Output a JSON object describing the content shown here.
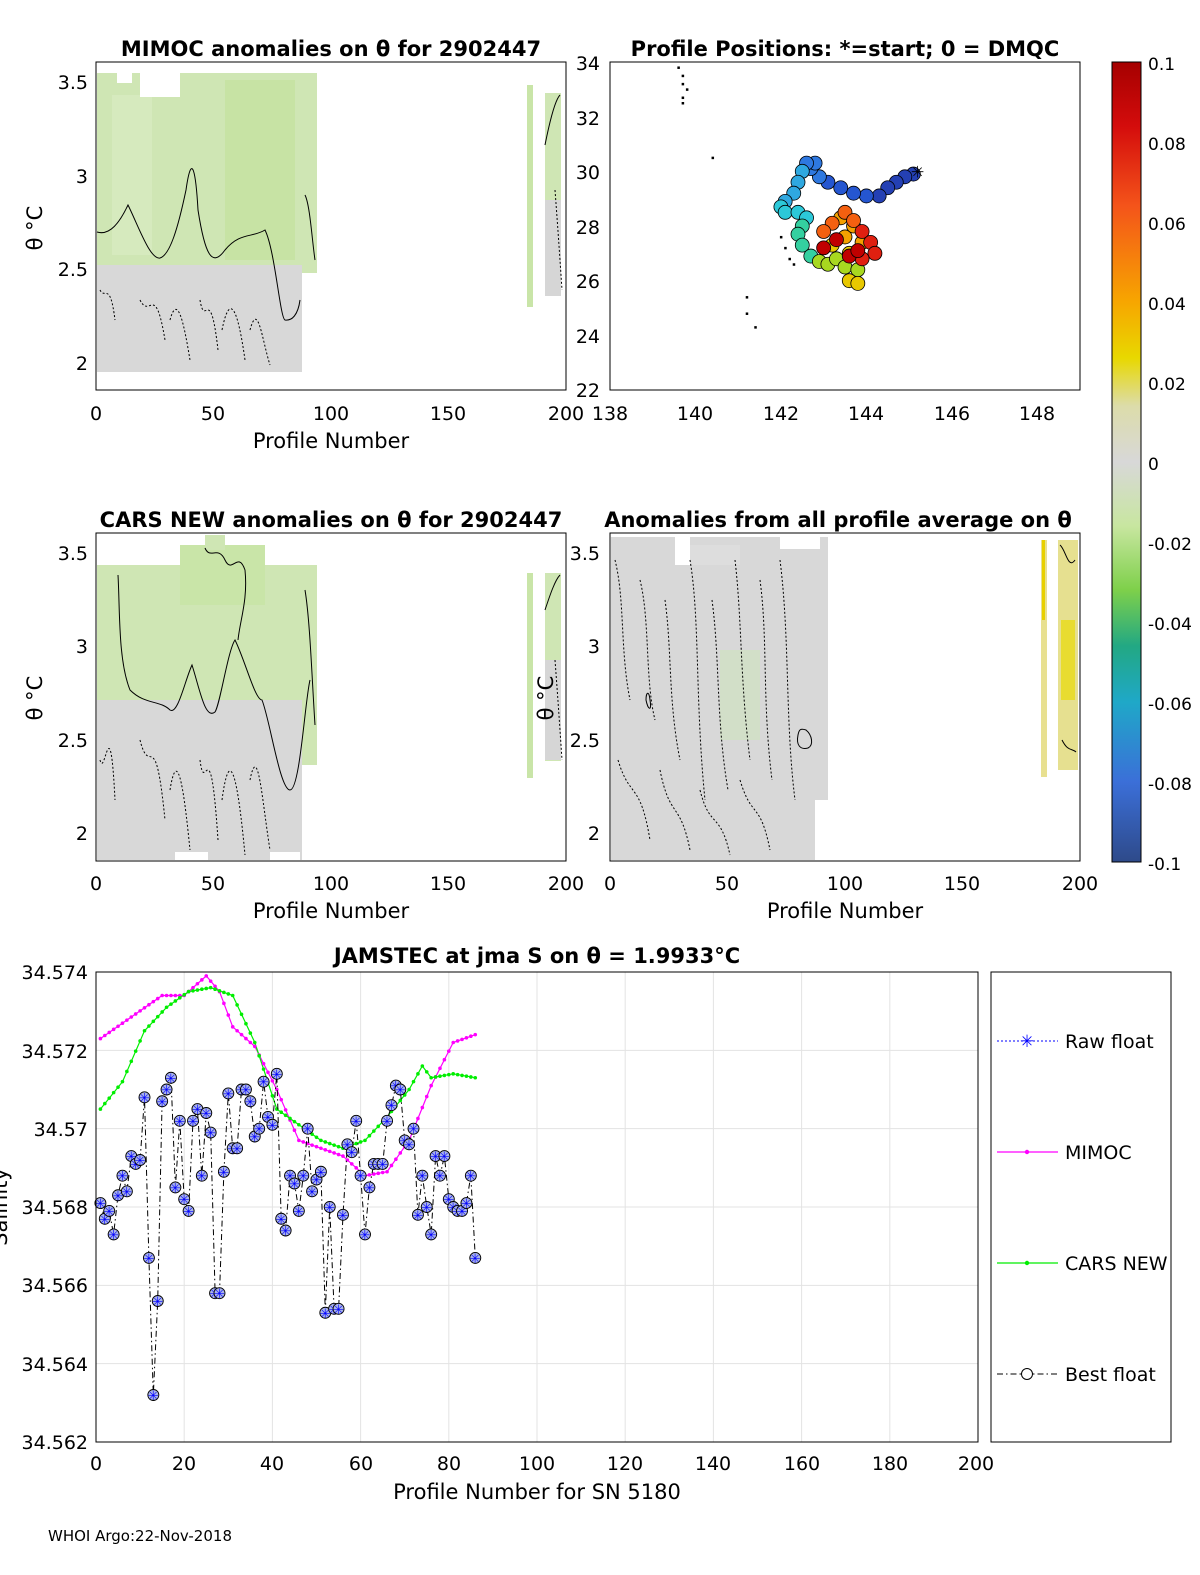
{
  "footer": "WHOI Argo:22-Nov-2018",
  "chart_data": [
    {
      "id": "mimoc",
      "type": "heatmap",
      "title": "MIMOC anomalies on θ  for 2902447",
      "xlabel": "Profile Number",
      "ylabel": "θ °C",
      "xlim": [
        0,
        200
      ],
      "ylim": [
        1.85,
        3.6
      ],
      "xticks": [
        "0",
        "50",
        "100",
        "150",
        "200"
      ],
      "yticks": [
        "2",
        "2.5",
        "3",
        "3.5"
      ],
      "xtick_values": [
        0,
        50,
        100,
        150,
        200
      ],
      "ytick_values": [
        2,
        2.5,
        3,
        3.5
      ]
    },
    {
      "id": "positions",
      "type": "scatter",
      "title": "Profile Positions: *=start; 0 = DMQC",
      "xlim": [
        138,
        149
      ],
      "ylim": [
        22,
        34
      ],
      "xticks": [
        "138",
        "140",
        "142",
        "144",
        "146",
        "148"
      ],
      "yticks": [
        "22",
        "24",
        "26",
        "28",
        "30",
        "32",
        "34"
      ],
      "xtick_values": [
        138,
        140,
        142,
        144,
        146,
        148
      ],
      "ytick_values": [
        22,
        24,
        26,
        28,
        30,
        32,
        34
      ],
      "start": [
        145.2,
        30.0
      ],
      "track": [
        [
          145.1,
          29.9
        ],
        [
          144.9,
          29.8
        ],
        [
          144.7,
          29.6
        ],
        [
          144.5,
          29.4
        ],
        [
          144.3,
          29.1
        ],
        [
          144.0,
          29.1
        ],
        [
          143.7,
          29.2
        ],
        [
          143.4,
          29.4
        ],
        [
          143.1,
          29.6
        ],
        [
          142.9,
          29.8
        ],
        [
          142.7,
          30.1
        ],
        [
          142.8,
          30.3
        ],
        [
          142.6,
          30.3
        ],
        [
          142.5,
          30.0
        ],
        [
          142.4,
          29.6
        ],
        [
          142.3,
          29.2
        ],
        [
          142.1,
          28.9
        ],
        [
          142.0,
          28.7
        ],
        [
          142.1,
          28.5
        ],
        [
          142.4,
          28.5
        ],
        [
          142.6,
          28.3
        ],
        [
          142.5,
          28.0
        ],
        [
          142.4,
          27.7
        ],
        [
          142.5,
          27.3
        ],
        [
          142.7,
          26.9
        ],
        [
          142.9,
          26.7
        ],
        [
          143.1,
          26.6
        ],
        [
          143.3,
          26.8
        ],
        [
          143.5,
          26.5
        ],
        [
          143.8,
          26.4
        ],
        [
          143.6,
          26.0
        ],
        [
          143.8,
          25.9
        ],
        [
          143.6,
          27.0
        ],
        [
          143.2,
          27.3
        ],
        [
          143.5,
          27.6
        ],
        [
          143.9,
          27.4
        ],
        [
          143.7,
          28.0
        ],
        [
          143.4,
          28.3
        ],
        [
          143.2,
          28.1
        ],
        [
          143.0,
          27.8
        ],
        [
          143.5,
          28.5
        ],
        [
          143.7,
          28.2
        ],
        [
          143.9,
          27.8
        ],
        [
          144.1,
          27.4
        ],
        [
          144.2,
          27.0
        ],
        [
          143.9,
          26.8
        ],
        [
          143.6,
          26.9
        ],
        [
          143.3,
          27.5
        ],
        [
          143.0,
          27.2
        ],
        [
          143.8,
          27.1
        ]
      ],
      "marks": [
        [
          139.6,
          33.8
        ],
        [
          139.7,
          33.5
        ],
        [
          139.7,
          33.2
        ],
        [
          139.8,
          33.0
        ],
        [
          139.7,
          32.7
        ],
        [
          139.7,
          32.5
        ],
        [
          140.4,
          30.5
        ],
        [
          142.0,
          27.6
        ],
        [
          142.1,
          27.2
        ],
        [
          142.2,
          26.8
        ],
        [
          142.3,
          26.6
        ],
        [
          141.2,
          25.4
        ],
        [
          141.2,
          24.8
        ],
        [
          141.4,
          24.3
        ]
      ]
    },
    {
      "id": "colorbar",
      "type": "heatmap",
      "ticks": [
        "0.1",
        "0.08",
        "0.06",
        "0.04",
        "0.02",
        "0",
        "-0.02",
        "-0.04",
        "-0.06",
        "-0.08",
        "-0.1"
      ],
      "tick_values": [
        0.1,
        0.08,
        0.06,
        0.04,
        0.02,
        0,
        -0.02,
        -0.04,
        -0.06,
        -0.08,
        -0.1
      ],
      "range": [
        -0.1,
        0.1
      ]
    },
    {
      "id": "cars",
      "type": "heatmap",
      "title": "CARS NEW anomalies on θ for 2902447",
      "xlabel": "Profile Number",
      "ylabel": "θ °C",
      "xlim": [
        0,
        200
      ],
      "ylim": [
        1.85,
        3.6
      ],
      "xticks": [
        "0",
        "50",
        "100",
        "150",
        "200"
      ],
      "yticks": [
        "2",
        "2.5",
        "3",
        "3.5"
      ],
      "xtick_values": [
        0,
        50,
        100,
        150,
        200
      ],
      "ytick_values": [
        2,
        2.5,
        3,
        3.5
      ]
    },
    {
      "id": "allavg",
      "type": "heatmap",
      "title": "Anomalies from all profile average on θ",
      "xlabel": "Profile Number",
      "ylabel": "θ °C",
      "xlim": [
        0,
        200
      ],
      "ylim": [
        1.85,
        3.6
      ],
      "xticks": [
        "0",
        "50",
        "100",
        "150",
        "200"
      ],
      "yticks": [
        "2",
        "2.5",
        "3",
        "3.5"
      ],
      "xtick_values": [
        0,
        50,
        100,
        150,
        200
      ],
      "ytick_values": [
        2,
        2.5,
        3,
        3.5
      ]
    },
    {
      "id": "salinity",
      "type": "line",
      "title": "JAMSTEC at jma S on θ = 1.9933°C",
      "xlabel": "Profile Number for SN 5180",
      "ylabel": "Salinity",
      "xlim": [
        0,
        200
      ],
      "ylim": [
        34.562,
        34.574
      ],
      "xticks": [
        "0",
        "20",
        "40",
        "60",
        "80",
        "100",
        "120",
        "140",
        "160",
        "180",
        "200"
      ],
      "yticks": [
        "34.562",
        "34.564",
        "34.566",
        "34.568",
        "34.57",
        "34.572",
        "34.574"
      ],
      "xtick_values": [
        0,
        20,
        40,
        60,
        80,
        100,
        120,
        140,
        160,
        180,
        200
      ],
      "ytick_values": [
        34.562,
        34.564,
        34.566,
        34.568,
        34.57,
        34.572,
        34.574
      ],
      "legend": [
        "Raw float",
        "MIMOC",
        "CARS NEW",
        "Best float"
      ],
      "legend_position": "right",
      "series": [
        {
          "name": "Raw float / Best float",
          "color": "#0000ff",
          "x": [
            1,
            2,
            3,
            4,
            5,
            6,
            7,
            8,
            9,
            10,
            11,
            12,
            13,
            14,
            15,
            16,
            17,
            18,
            19,
            20,
            21,
            22,
            23,
            24,
            25,
            26,
            27,
            28,
            29,
            30,
            31,
            32,
            33,
            34,
            35,
            36,
            37,
            38,
            39,
            40,
            41,
            42,
            43,
            44,
            45,
            46,
            47,
            48,
            49,
            50,
            51,
            52,
            53,
            54,
            55,
            56,
            57,
            58,
            59,
            60,
            61,
            62,
            63,
            64,
            65,
            66,
            67,
            68,
            69,
            70,
            71,
            72,
            73,
            74,
            75,
            76,
            77,
            78,
            79,
            80,
            81,
            82,
            83,
            84,
            85,
            86
          ],
          "values": [
            34.5681,
            34.5677,
            34.5679,
            34.5673,
            34.5683,
            34.5688,
            34.5684,
            34.5693,
            34.5691,
            34.5692,
            34.5708,
            34.5667,
            34.5632,
            34.5656,
            34.5707,
            34.571,
            34.5713,
            34.5685,
            34.5702,
            34.5682,
            34.5679,
            34.5702,
            34.5705,
            34.5688,
            34.5704,
            34.5699,
            34.5658,
            34.5658,
            34.5689,
            34.5709,
            34.5695,
            34.5695,
            34.571,
            34.571,
            34.5707,
            34.5698,
            34.57,
            34.5712,
            34.5703,
            34.5701,
            34.5714,
            34.5677,
            34.5674,
            34.5688,
            34.5686,
            34.5679,
            34.5688,
            34.57,
            34.5684,
            34.5687,
            34.5689,
            34.5653,
            34.568,
            34.5654,
            34.5654,
            34.5678,
            34.5696,
            34.5694,
            34.5702,
            34.5688,
            34.5673,
            34.5685,
            34.5691,
            34.5691,
            34.5691,
            34.5702,
            34.5706,
            34.5711,
            34.571,
            34.5697,
            34.5696,
            34.57,
            34.5678,
            34.5688,
            34.568,
            34.5673,
            34.5693,
            34.5688,
            34.5693,
            34.5682,
            34.568,
            34.5679,
            34.5679,
            34.5681,
            34.5688,
            34.5667
          ]
        },
        {
          "name": "MIMOC",
          "color": "#ff00ff",
          "x": [
            1,
            15,
            20,
            25,
            28,
            31,
            36,
            41,
            46,
            51,
            56,
            61,
            66,
            71,
            76,
            81,
            86
          ],
          "values": [
            34.5723,
            34.5734,
            34.5734,
            34.5739,
            34.5735,
            34.5726,
            34.5721,
            34.571,
            34.5697,
            34.5695,
            34.5693,
            34.5688,
            34.5689,
            34.5697,
            34.5711,
            34.5722,
            34.5724
          ]
        },
        {
          "name": "CARS NEW",
          "color": "#00ee00",
          "x": [
            1,
            6,
            11,
            16,
            21,
            26,
            31,
            36,
            41,
            46,
            51,
            56,
            61,
            66,
            71,
            74,
            76,
            81,
            86
          ],
          "values": [
            34.5705,
            34.5712,
            34.5725,
            34.5731,
            34.5735,
            34.5736,
            34.5734,
            34.5722,
            34.5705,
            34.5701,
            34.5697,
            34.5695,
            34.5697,
            34.5703,
            34.571,
            34.5716,
            34.5713,
            34.5714,
            34.5713
          ]
        }
      ]
    }
  ]
}
